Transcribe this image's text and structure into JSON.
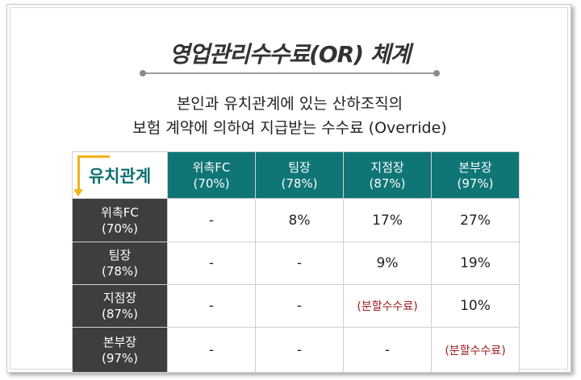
{
  "title": "영업관리수수료(OR) 체계",
  "subtitle_lines": [
    "본인과 유치관계에 있는 산하조직의",
    "보험 계약에 의하여 지급받는 수수료 (Override)"
  ],
  "table": {
    "corner_label": "유치관계",
    "columns": [
      {
        "name": "위촉FC",
        "rate": "(70%)"
      },
      {
        "name": "팀장",
        "rate": "(78%)"
      },
      {
        "name": "지점장",
        "rate": "(87%)"
      },
      {
        "name": "본부장",
        "rate": "(97%)"
      }
    ],
    "rows": [
      {
        "name": "위촉FC",
        "rate": "(70%)",
        "cells": [
          "-",
          "8%",
          "17%",
          "27%"
        ]
      },
      {
        "name": "팀장",
        "rate": "(78%)",
        "cells": [
          "-",
          "-",
          "9%",
          "19%"
        ]
      },
      {
        "name": "지점장",
        "rate": "(87%)",
        "cells": [
          "-",
          "-",
          "(분할수수료)",
          "10%"
        ]
      },
      {
        "name": "본부장",
        "rate": "(97%)",
        "cells": [
          "-",
          "-",
          "-",
          "(분할수수료)"
        ]
      }
    ]
  },
  "colors": {
    "header_teal": "#107575",
    "row_header_dark": "#3e3e3e",
    "arrow_yellow": "#f2b21c",
    "special_red": "#9a1c1c"
  }
}
